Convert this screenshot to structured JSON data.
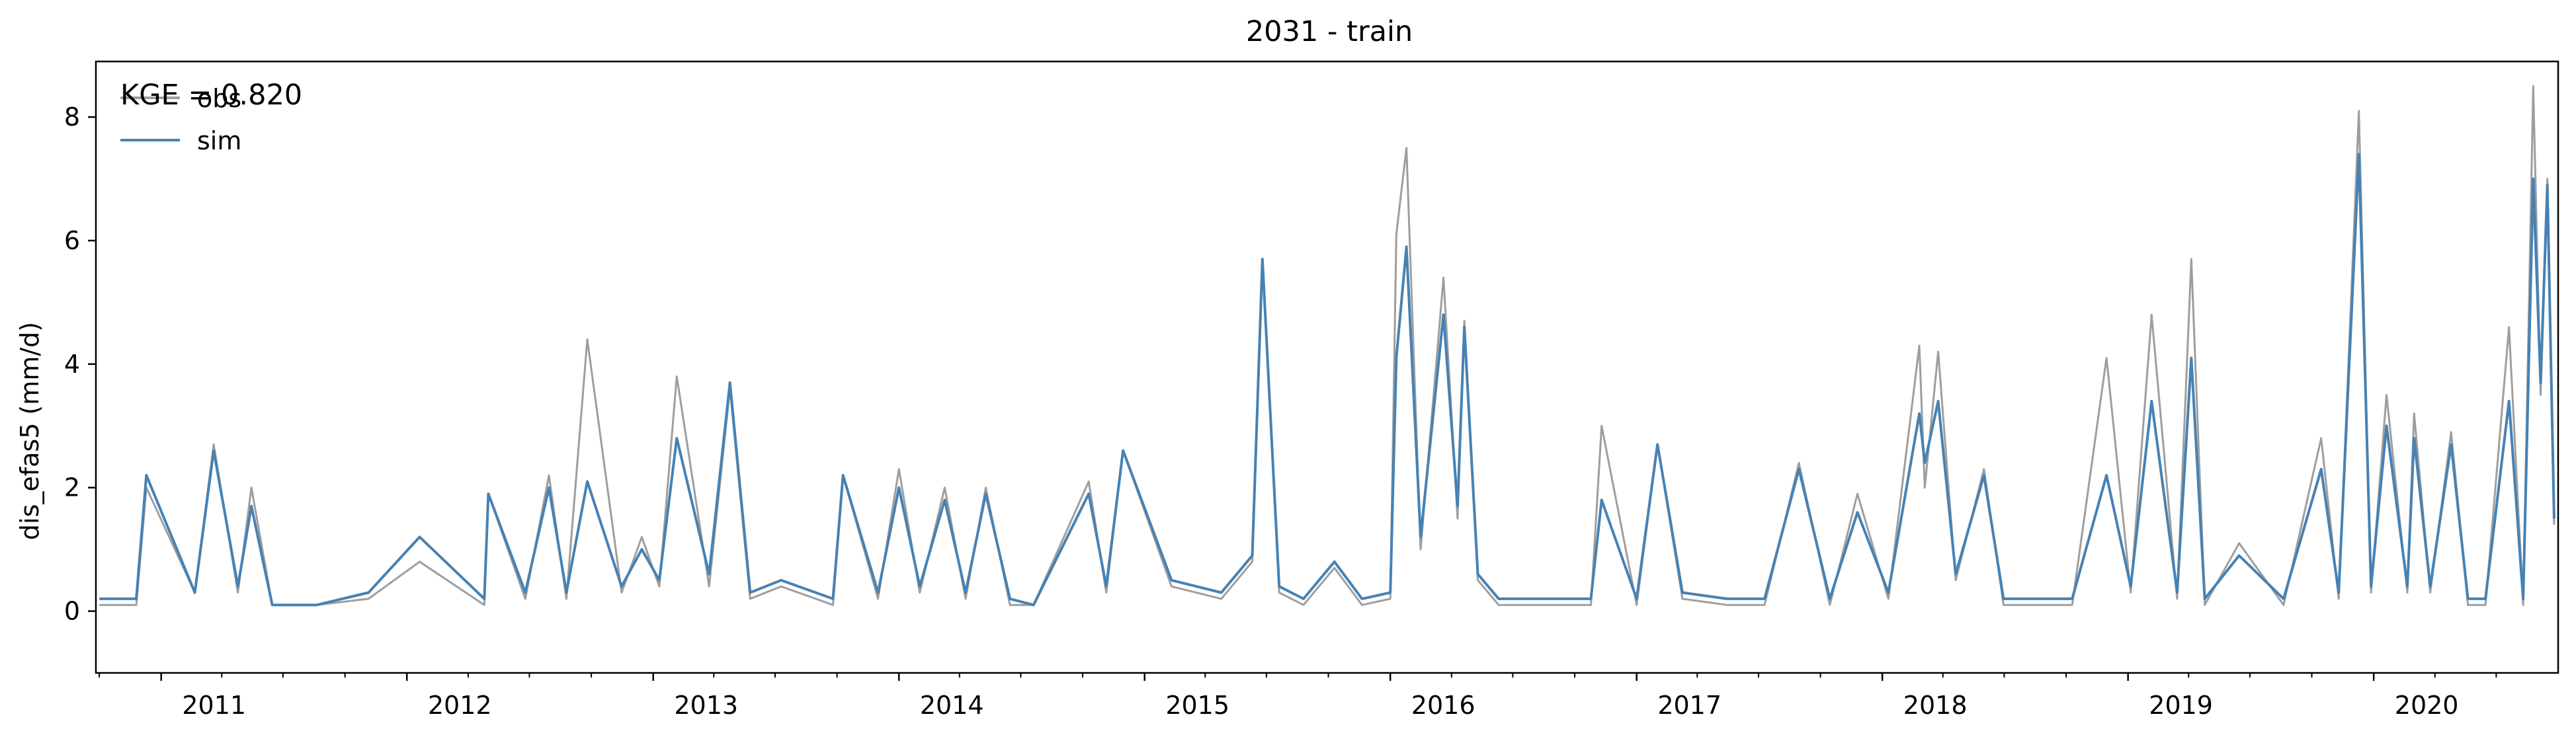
{
  "chart_data": {
    "type": "line",
    "title": "2031 - train",
    "xlabel": "",
    "ylabel": "dis_efas5 (mm/d)",
    "annotation": "KGE = 0.820",
    "xlim": [
      "2010-09-26",
      "2020-10-01"
    ],
    "ylim": [
      -1,
      8.9
    ],
    "grid": false,
    "legend_position": "top-left",
    "x_ticks": [
      "2011",
      "2012",
      "2013",
      "2014",
      "2015",
      "2016",
      "2017",
      "2018",
      "2019",
      "2020"
    ],
    "y_ticks": [
      0,
      2,
      4,
      6,
      8
    ],
    "series": [
      {
        "name": "obs",
        "color": "#9e9e9e",
        "x": [
          "2010-10-01",
          "2010-11-25",
          "2010-12-10",
          "2011-02-20",
          "2011-03-20",
          "2011-04-25",
          "2011-05-15",
          "2011-06-15",
          "2011-08-20",
          "2011-11-05",
          "2012-01-20",
          "2012-04-25",
          "2012-05-01",
          "2012-06-25",
          "2012-07-30",
          "2012-08-25",
          "2012-09-25",
          "2012-11-15",
          "2012-12-15",
          "2013-01-10",
          "2013-02-05",
          "2013-03-25",
          "2013-04-25",
          "2013-05-25",
          "2013-07-10",
          "2013-09-25",
          "2013-10-10",
          "2013-12-01",
          "2014-01-01",
          "2014-02-01",
          "2014-03-10",
          "2014-04-10",
          "2014-05-10",
          "2014-06-15",
          "2014-07-20",
          "2014-10-10",
          "2014-11-05",
          "2014-11-30",
          "2015-02-10",
          "2015-04-25",
          "2015-06-10",
          "2015-06-25",
          "2015-07-20",
          "2015-08-25",
          "2015-10-10",
          "2015-11-20",
          "2016-01-01",
          "2016-01-10",
          "2016-01-25",
          "2016-02-15",
          "2016-03-20",
          "2016-04-10",
          "2016-04-20",
          "2016-05-10",
          "2016-06-10",
          "2016-08-15",
          "2016-10-25",
          "2016-11-10",
          "2017-01-01",
          "2017-02-01",
          "2017-03-10",
          "2017-05-15",
          "2017-07-10",
          "2017-08-30",
          "2017-10-15",
          "2017-11-25",
          "2018-01-10",
          "2018-02-25",
          "2018-03-05",
          "2018-03-25",
          "2018-04-20",
          "2018-06-01",
          "2018-06-30",
          "2018-08-15",
          "2018-10-10",
          "2018-11-30",
          "2019-01-05",
          "2019-02-05",
          "2019-03-15",
          "2019-04-05",
          "2019-04-25",
          "2019-06-15",
          "2019-08-20",
          "2019-10-15",
          "2019-11-10",
          "2019-12-10",
          "2019-12-28",
          "2020-01-20",
          "2020-02-20",
          "2020-03-01",
          "2020-03-25",
          "2020-04-25",
          "2020-05-20",
          "2020-06-15",
          "2020-07-20",
          "2020-08-10",
          "2020-08-25",
          "2020-09-05",
          "2020-09-15",
          "2020-09-25"
        ],
        "y": [
          0.1,
          0.1,
          2.0,
          0.3,
          2.7,
          0.3,
          2.0,
          0.1,
          0.1,
          0.2,
          0.8,
          0.1,
          1.9,
          0.2,
          2.2,
          0.2,
          4.4,
          0.3,
          1.2,
          0.4,
          3.8,
          0.4,
          3.6,
          0.2,
          0.4,
          0.1,
          2.2,
          0.2,
          2.3,
          0.3,
          2.0,
          0.2,
          2.0,
          0.1,
          0.1,
          2.1,
          0.3,
          2.6,
          0.4,
          0.2,
          0.8,
          5.7,
          0.3,
          0.1,
          0.7,
          0.1,
          0.2,
          6.1,
          7.5,
          1.0,
          5.4,
          1.5,
          4.7,
          0.5,
          0.1,
          0.1,
          0.1,
          3.0,
          0.1,
          2.7,
          0.2,
          0.1,
          0.1,
          2.4,
          0.1,
          1.9,
          0.2,
          4.3,
          2.0,
          4.2,
          0.5,
          2.3,
          0.1,
          0.1,
          0.1,
          4.1,
          0.3,
          4.8,
          0.2,
          5.7,
          0.1,
          1.1,
          0.1,
          2.8,
          0.2,
          8.1,
          0.3,
          3.5,
          0.3,
          3.2,
          0.3,
          2.9,
          0.1,
          0.1,
          4.6,
          0.1,
          8.5,
          3.5,
          7.0,
          1.4
        ]
      },
      {
        "name": "sim",
        "color": "#4682b4",
        "x": [
          "2010-10-01",
          "2010-11-25",
          "2010-12-10",
          "2011-02-20",
          "2011-03-20",
          "2011-04-25",
          "2011-05-15",
          "2011-06-15",
          "2011-08-20",
          "2011-11-05",
          "2012-01-20",
          "2012-04-25",
          "2012-05-01",
          "2012-06-25",
          "2012-07-30",
          "2012-08-25",
          "2012-09-25",
          "2012-11-15",
          "2012-12-15",
          "2013-01-10",
          "2013-02-05",
          "2013-03-25",
          "2013-04-25",
          "2013-05-25",
          "2013-07-10",
          "2013-09-25",
          "2013-10-10",
          "2013-12-01",
          "2014-01-01",
          "2014-02-01",
          "2014-03-10",
          "2014-04-10",
          "2014-05-10",
          "2014-06-15",
          "2014-07-20",
          "2014-10-10",
          "2014-11-05",
          "2014-11-30",
          "2015-02-10",
          "2015-04-25",
          "2015-06-10",
          "2015-06-25",
          "2015-07-20",
          "2015-08-25",
          "2015-10-10",
          "2015-11-20",
          "2016-01-01",
          "2016-01-10",
          "2016-01-25",
          "2016-02-15",
          "2016-03-20",
          "2016-04-10",
          "2016-04-20",
          "2016-05-10",
          "2016-06-10",
          "2016-08-15",
          "2016-10-25",
          "2016-11-10",
          "2017-01-01",
          "2017-02-01",
          "2017-03-10",
          "2017-05-15",
          "2017-07-10",
          "2017-08-30",
          "2017-10-15",
          "2017-11-25",
          "2018-01-10",
          "2018-02-25",
          "2018-03-05",
          "2018-03-25",
          "2018-04-20",
          "2018-06-01",
          "2018-06-30",
          "2018-08-15",
          "2018-10-10",
          "2018-11-30",
          "2019-01-05",
          "2019-02-05",
          "2019-03-15",
          "2019-04-05",
          "2019-04-25",
          "2019-06-15",
          "2019-08-20",
          "2019-10-15",
          "2019-11-10",
          "2019-12-10",
          "2019-12-28",
          "2020-01-20",
          "2020-02-20",
          "2020-03-01",
          "2020-03-25",
          "2020-04-25",
          "2020-05-20",
          "2020-06-15",
          "2020-07-20",
          "2020-08-10",
          "2020-08-25",
          "2020-09-05",
          "2020-09-15",
          "2020-09-25"
        ],
        "y": [
          0.2,
          0.2,
          2.2,
          0.3,
          2.6,
          0.4,
          1.7,
          0.1,
          0.1,
          0.3,
          1.2,
          0.2,
          1.9,
          0.3,
          2.0,
          0.3,
          2.1,
          0.4,
          1.0,
          0.5,
          2.8,
          0.6,
          3.7,
          0.3,
          0.5,
          0.2,
          2.2,
          0.3,
          2.0,
          0.4,
          1.8,
          0.3,
          1.9,
          0.2,
          0.1,
          1.9,
          0.4,
          2.6,
          0.5,
          0.3,
          0.9,
          5.7,
          0.4,
          0.2,
          0.8,
          0.2,
          0.3,
          4.1,
          5.9,
          1.2,
          4.8,
          1.7,
          4.6,
          0.6,
          0.2,
          0.2,
          0.2,
          1.8,
          0.2,
          2.7,
          0.3,
          0.2,
          0.2,
          2.3,
          0.2,
          1.6,
          0.3,
          3.2,
          2.4,
          3.4,
          0.6,
          2.2,
          0.2,
          0.2,
          0.2,
          2.2,
          0.4,
          3.4,
          0.3,
          4.1,
          0.2,
          0.9,
          0.2,
          2.3,
          0.3,
          7.4,
          0.4,
          3.0,
          0.4,
          2.8,
          0.4,
          2.7,
          0.2,
          0.2,
          3.4,
          0.2,
          7.0,
          3.7,
          6.9,
          1.5
        ]
      }
    ]
  }
}
